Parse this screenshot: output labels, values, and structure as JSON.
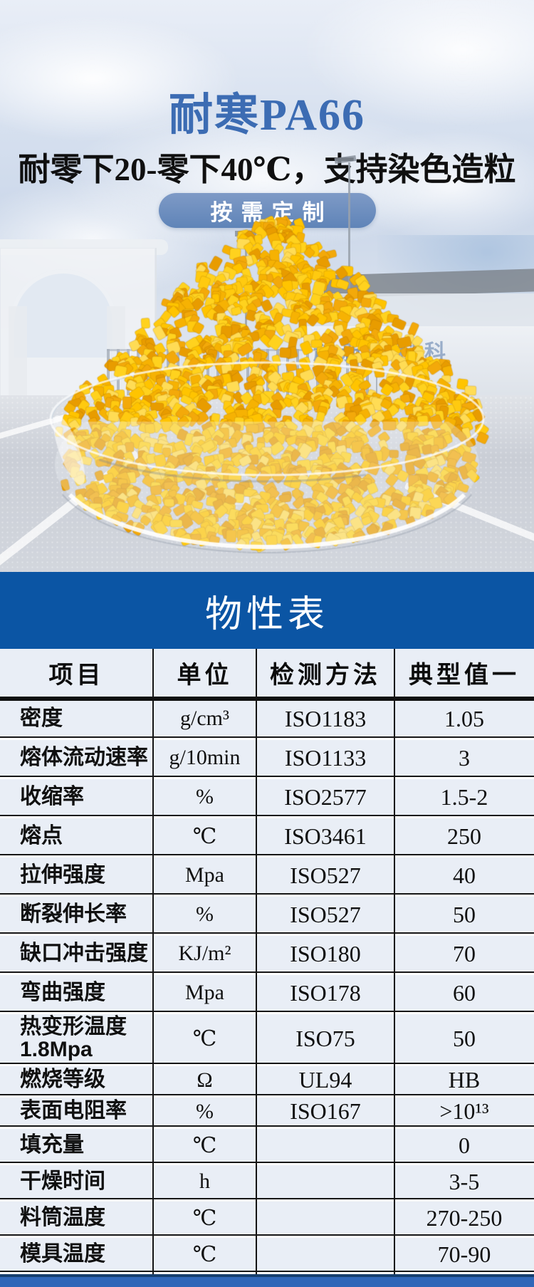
{
  "hero": {
    "title": "耐寒PA66",
    "subtitle": "耐零下20-零下40℃，支持染色造粒",
    "button_label": "按需定制",
    "watermark": "越新材料科"
  },
  "section": {
    "title": "物性表"
  },
  "table": {
    "headers": [
      "项目",
      "单位",
      "检测方法",
      "典型值一"
    ],
    "rows": [
      {
        "item": "密度",
        "unit": "g/cm³",
        "method": "ISO1183",
        "value": "1.05"
      },
      {
        "item": "熔体流动速率",
        "unit": "g/10min",
        "method": "ISO1133",
        "value": "3"
      },
      {
        "item": "收缩率",
        "unit": "%",
        "method": "ISO2577",
        "value": "1.5-2"
      },
      {
        "item": "熔点",
        "unit": "℃",
        "method": "ISO3461",
        "value": "250"
      },
      {
        "item": "拉伸强度",
        "unit": "Mpa",
        "method": "ISO527",
        "value": "40"
      },
      {
        "item": "断裂伸长率",
        "unit": "%",
        "method": "ISO527",
        "value": "50"
      },
      {
        "item": "缺口冲击强度",
        "unit": "KJ/m²",
        "method": "ISO180",
        "value": "70"
      },
      {
        "item": "弯曲强度",
        "unit": "Mpa",
        "method": "ISO178",
        "value": "60"
      },
      {
        "item": "热变形温度\n1.8Mpa",
        "unit": "℃",
        "method": "ISO75",
        "value": "50"
      },
      {
        "item": "燃烧等级",
        "unit": "Ω",
        "method": "UL94",
        "value": "HB"
      },
      {
        "item": "表面电阻率",
        "unit": "%",
        "method": "ISO167",
        "value": ">10¹³"
      },
      {
        "item": "填充量",
        "unit": "℃",
        "method": "",
        "value": "0"
      },
      {
        "item": "干燥时间",
        "unit": "h",
        "method": "",
        "value": "3-5"
      },
      {
        "item": "料筒温度",
        "unit": "℃",
        "method": "",
        "value": "270-250"
      },
      {
        "item": "模具温度",
        "unit": "℃",
        "method": "",
        "value": "70-90"
      }
    ]
  },
  "colors": {
    "band_blue": "#0b55a4",
    "strip_blue": "#2f66b8",
    "strip_navy": "#17406f",
    "row_bg": "#e9eef6",
    "title_blue": "#3c6cb3",
    "button_blue": "#5f84b8",
    "pellet_palette": [
      "#ffd21e",
      "#ffc400",
      "#f6b203",
      "#e89c00",
      "#ffdc55",
      "#f3a90a",
      "#ffca10"
    ]
  }
}
